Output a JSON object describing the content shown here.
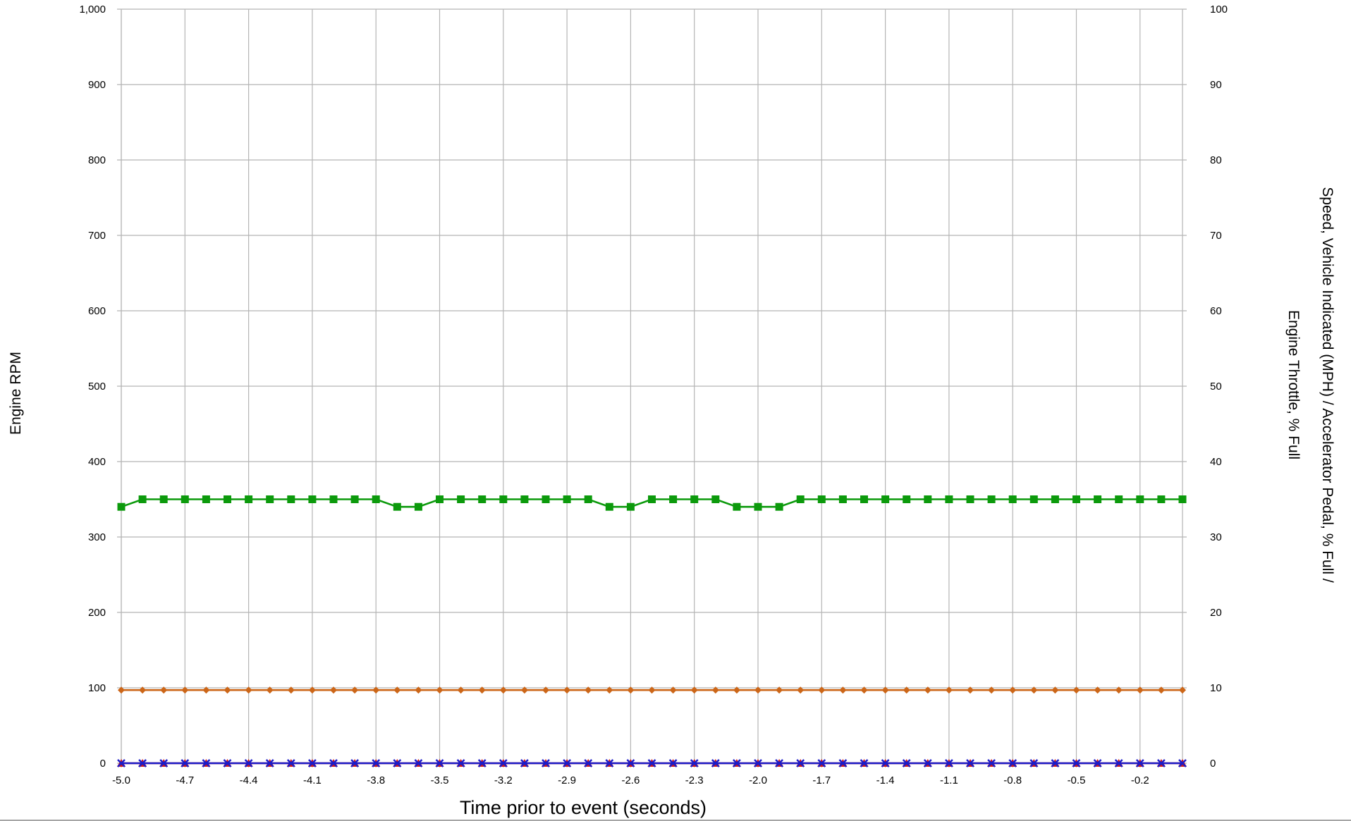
{
  "chart_data": {
    "type": "line",
    "xlabel": "Time prior to event (seconds)",
    "ylabel_left": "Engine RPM",
    "ylabel_right_lines": [
      "Speed, Vehicle Indicated (MPH) / Accelerator Pedal, % Full /",
      "Engine Throttle, % Full"
    ],
    "x_ticks": [
      "-5.0",
      "-4.7",
      "-4.4",
      "-4.1",
      "-3.8",
      "-3.5",
      "-3.2",
      "-2.9",
      "-2.6",
      "-2.3",
      "-2.0",
      "-1.7",
      "-1.4",
      "-1.1",
      "-0.8",
      "-0.5",
      "-0.2"
    ],
    "xlim": [
      -5.0,
      0.0
    ],
    "ylim_left": [
      0,
      1000
    ],
    "ylim_right": [
      0,
      100
    ],
    "y_ticks_left": [
      "0",
      "100",
      "200",
      "300",
      "400",
      "500",
      "600",
      "700",
      "800",
      "900",
      "1,000"
    ],
    "y_ticks_right": [
      "0",
      "10",
      "20",
      "30",
      "40",
      "50",
      "60",
      "70",
      "80",
      "90",
      "100"
    ],
    "grid": true,
    "x": [
      -5.0,
      -4.9,
      -4.8,
      -4.7,
      -4.6,
      -4.5,
      -4.4,
      -4.3,
      -4.2,
      -4.1,
      -4.0,
      -3.9,
      -3.8,
      -3.7,
      -3.6,
      -3.5,
      -3.4,
      -3.3,
      -3.2,
      -3.1,
      -3.0,
      -2.9,
      -2.8,
      -2.7,
      -2.6,
      -2.5,
      -2.4,
      -2.3,
      -2.2,
      -2.1,
      -2.0,
      -1.9,
      -1.8,
      -1.7,
      -1.6,
      -1.5,
      -1.4,
      -1.3,
      -1.2,
      -1.1,
      -1.0,
      -0.9,
      -0.8,
      -0.7,
      -0.6,
      -0.5,
      -0.4,
      -0.3,
      -0.2,
      -0.1,
      0.0
    ],
    "series": [
      {
        "axis": "right",
        "color": "#0c9a0c",
        "marker": "square",
        "values": [
          34,
          35,
          35,
          35,
          35,
          35,
          35,
          35,
          35,
          35,
          35,
          35,
          35,
          34,
          34,
          35,
          35,
          35,
          35,
          35,
          35,
          35,
          35,
          34,
          34,
          35,
          35,
          35,
          35,
          34,
          34,
          34,
          35,
          35,
          35,
          35,
          35,
          35,
          35,
          35,
          35,
          35,
          35,
          35,
          35,
          35,
          35,
          35,
          35,
          35,
          35
        ]
      },
      {
        "axis": "left",
        "color": "#cc6618",
        "marker": "diamond",
        "values": [
          97,
          97,
          97,
          97,
          97,
          97,
          97,
          97,
          97,
          97,
          97,
          97,
          97,
          97,
          97,
          97,
          97,
          97,
          97,
          97,
          97,
          97,
          97,
          97,
          97,
          97,
          97,
          97,
          97,
          97,
          97,
          97,
          97,
          97,
          97,
          97,
          97,
          97,
          97,
          97,
          97,
          97,
          97,
          97,
          97,
          97,
          97,
          97,
          97,
          97,
          97
        ]
      },
      {
        "axis": "right",
        "color": "#d01818",
        "marker": "triangle",
        "values": [
          0,
          0,
          0,
          0,
          0,
          0,
          0,
          0,
          0,
          0,
          0,
          0,
          0,
          0,
          0,
          0,
          0,
          0,
          0,
          0,
          0,
          0,
          0,
          0,
          0,
          0,
          0,
          0,
          0,
          0,
          0,
          0,
          0,
          0,
          0,
          0,
          0,
          0,
          0,
          0,
          0,
          0,
          0,
          0,
          0,
          0,
          0,
          0,
          0,
          0,
          0
        ]
      },
      {
        "axis": "right",
        "color": "#1c1cc8",
        "marker": "x",
        "values": [
          0,
          0,
          0,
          0,
          0,
          0,
          0,
          0,
          0,
          0,
          0,
          0,
          0,
          0,
          0,
          0,
          0,
          0,
          0,
          0,
          0,
          0,
          0,
          0,
          0,
          0,
          0,
          0,
          0,
          0,
          0,
          0,
          0,
          0,
          0,
          0,
          0,
          0,
          0,
          0,
          0,
          0,
          0,
          0,
          0,
          0,
          0,
          0,
          0,
          0,
          0
        ]
      }
    ]
  }
}
